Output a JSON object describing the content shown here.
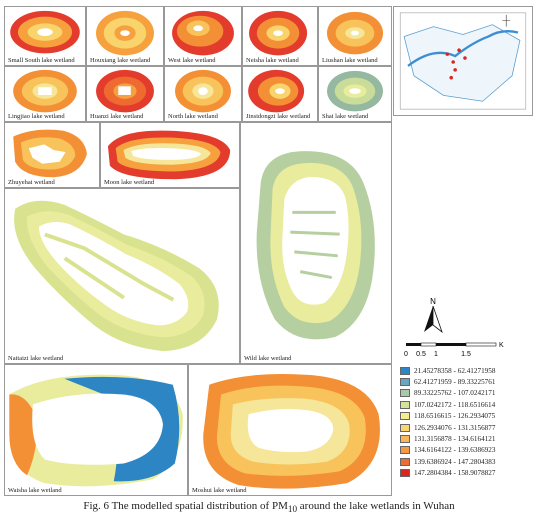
{
  "panels": [
    {
      "id": "small-south",
      "label": "Small South lake wetland",
      "colors": [
        "#e33b2c",
        "#f6a13e",
        "#f9d36b"
      ]
    },
    {
      "id": "houxiang",
      "label": "Houxiang lake wetland",
      "colors": [
        "#f6a13e",
        "#f9d36b",
        "#f6a13e"
      ]
    },
    {
      "id": "west",
      "label": "West lake wetland",
      "colors": [
        "#e33b2c",
        "#f39035",
        "#f9c35c"
      ]
    },
    {
      "id": "neisha",
      "label": "Neisha lake wetland",
      "colors": [
        "#e33b2c",
        "#f39035",
        "#f9d36b"
      ]
    },
    {
      "id": "liushan",
      "label": "Liushan lake wetland",
      "colors": [
        "#f39035",
        "#f9c35c",
        "#f6e69a"
      ]
    },
    {
      "id": "lingjiao",
      "label": "Lingjiao lake wetland",
      "colors": [
        "#f39035",
        "#f9c35c",
        "#f6e69a"
      ]
    },
    {
      "id": "huanzi",
      "label": "Huanzi lake wetland",
      "colors": [
        "#e33b2c",
        "#ee6a31",
        "#f6a13e"
      ]
    },
    {
      "id": "north",
      "label": "North lake wetland",
      "colors": [
        "#f39035",
        "#f9c35c",
        "#f6e69a"
      ]
    },
    {
      "id": "jinsidongzi",
      "label": "Jinsidongzi lake wetland",
      "colors": [
        "#e33b2c",
        "#f39035",
        "#f9d36b"
      ]
    },
    {
      "id": "shai",
      "label": "Shai lake wetland",
      "colors": [
        "#94b8a0",
        "#c9dc9a",
        "#e8ec9c"
      ]
    },
    {
      "id": "zhuyehai",
      "label": "Zhuyehai wetland",
      "colors": [
        "#f39035",
        "#f9c35c",
        "#f6e69a"
      ]
    },
    {
      "id": "moon",
      "label": "Moon lake wetland",
      "colors": [
        "#e33b2c",
        "#f6a13e",
        "#f6e69a"
      ]
    },
    {
      "id": "naitaizi",
      "label": "Naitaizi lake wetland",
      "colors": [
        "#d9e38f",
        "#e8ec9c",
        "#cfdca0"
      ]
    },
    {
      "id": "wild",
      "label": "Wild lake wetland",
      "colors": [
        "#b5cfa0",
        "#e8ec9c",
        "#dfe7a2"
      ]
    },
    {
      "id": "waisha",
      "label": "Waisha lake wetland",
      "colors": [
        "#2e85c4",
        "#e8ec9c",
        "#f39035"
      ]
    },
    {
      "id": "moshui",
      "label": "Moshui lake wetland",
      "colors": [
        "#f39035",
        "#f9c35c",
        "#f6e69a"
      ]
    }
  ],
  "legend": [
    {
      "range": "21.45278358 - 62.41271958",
      "color": "#2e85c4"
    },
    {
      "range": "62.41271959 - 89.33225761",
      "color": "#6aa6c2"
    },
    {
      "range": "89.33225762 - 107.0242171",
      "color": "#a8c8a8"
    },
    {
      "range": "107.0242172 - 118.6516614",
      "color": "#d4e29c"
    },
    {
      "range": "118.6516615 - 126.2934075",
      "color": "#f4ec8e"
    },
    {
      "range": "126.2934076 - 131.3156877",
      "color": "#fbd574"
    },
    {
      "range": "131.3156878 - 134.6164121",
      "color": "#f9b75c"
    },
    {
      "range": "134.6164122 - 139.6386923",
      "color": "#f39a45"
    },
    {
      "range": "139.6386924 - 147.2804383",
      "color": "#ec6d34"
    },
    {
      "range": "147.2804384 - 158.9078827",
      "color": "#d9261f"
    }
  ],
  "north_label": "N",
  "scale": {
    "unit": "KM",
    "ticks": [
      "0",
      "0.5",
      "1",
      "1.5"
    ]
  },
  "caption": {
    "prefix": "Fig. 6 The modelled spatial distribution of PM",
    "sub": "10",
    "suffix": " around the lake wetlands in Wuhan"
  }
}
